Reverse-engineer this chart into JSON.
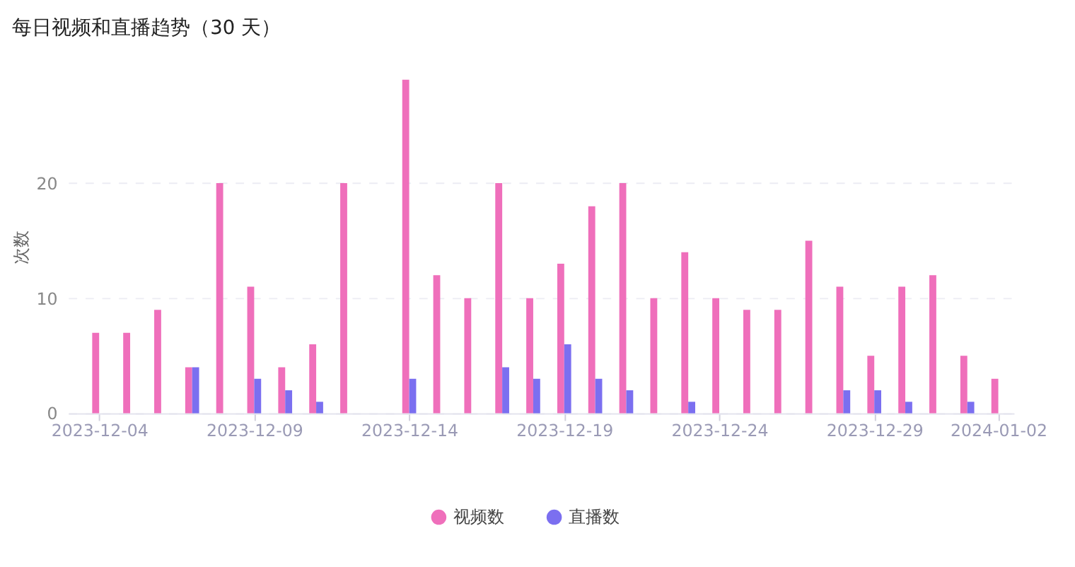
{
  "chart_data": {
    "type": "bar",
    "title": "每日视频和直播趋势（30 天）",
    "ylabel": "次数",
    "x": [
      "2023-12-04",
      "2023-12-05",
      "2023-12-06",
      "2023-12-07",
      "2023-12-08",
      "2023-12-09",
      "2023-12-10",
      "2023-12-11",
      "2023-12-12",
      "2023-12-13",
      "2023-12-14",
      "2023-12-15",
      "2023-12-16",
      "2023-12-17",
      "2023-12-18",
      "2023-12-19",
      "2023-12-20",
      "2023-12-21",
      "2023-12-22",
      "2023-12-23",
      "2023-12-24",
      "2023-12-25",
      "2023-12-26",
      "2023-12-27",
      "2023-12-28",
      "2023-12-29",
      "2023-12-30",
      "2023-12-31",
      "2024-01-01",
      "2024-01-02"
    ],
    "xlim": [
      "2023-12-03",
      "2024-01-02T12:00"
    ],
    "xticks": [
      "2023-12-04",
      "2023-12-09",
      "2023-12-14",
      "2023-12-19",
      "2023-12-24",
      "2023-12-29",
      "2024-01-02"
    ],
    "series": [
      {
        "name": "视频数",
        "color": "#ef6fbb",
        "values": [
          7,
          7,
          9,
          4,
          20,
          11,
          4,
          6,
          20,
          0,
          29,
          12,
          10,
          20,
          10,
          13,
          18,
          20,
          10,
          14,
          10,
          9,
          9,
          15,
          11,
          5,
          11,
          12,
          5,
          3
        ]
      },
      {
        "name": "直播数",
        "color": "#7b6ff0",
        "values": [
          0,
          0,
          0,
          4,
          0,
          3,
          2,
          1,
          0,
          0,
          3,
          0,
          0,
          4,
          3,
          6,
          3,
          2,
          0,
          1,
          0,
          0,
          0,
          0,
          2,
          2,
          1,
          0,
          1,
          0
        ]
      }
    ],
    "ylim": [
      0,
      29
    ],
    "yticks": [
      0,
      10,
      20
    ],
    "grid": "y",
    "legend": "bottom"
  }
}
